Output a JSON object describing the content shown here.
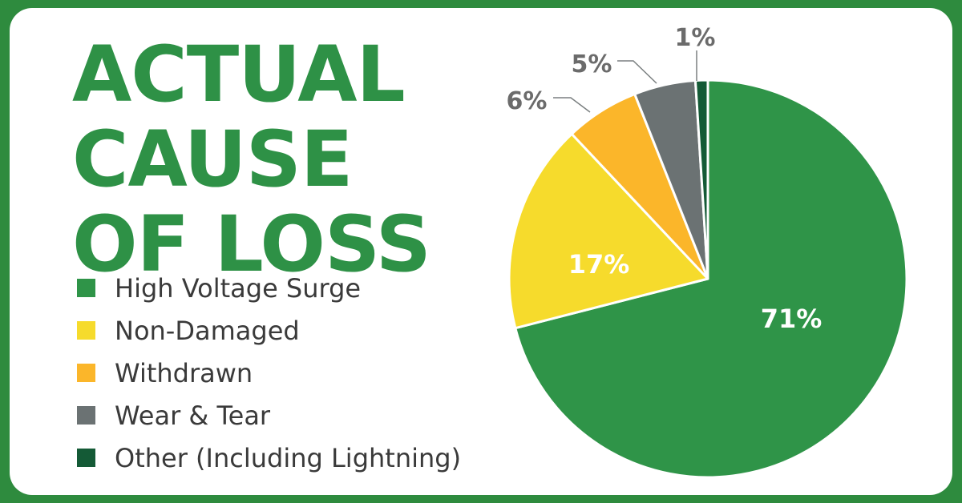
{
  "title_lines": [
    "ACTUAL",
    "CAUSE",
    "OF LOSS"
  ],
  "colors": {
    "border": "#2e8b3e",
    "title": "#2e9146",
    "leader": "#7a7f80"
  },
  "chart_data": {
    "type": "pie",
    "start_angle_deg": 0,
    "direction": "clockwise",
    "slices": [
      {
        "label": "High Voltage Surge",
        "value": 71,
        "value_label": "71%",
        "color": "#2f9448",
        "label_position": "inside"
      },
      {
        "label": "Non-Damaged",
        "value": 17,
        "value_label": "17%",
        "color": "#f6db2c",
        "label_position": "inside"
      },
      {
        "label": "Withdrawn",
        "value": 6,
        "value_label": "6%",
        "color": "#fbb62a",
        "label_position": "outside"
      },
      {
        "label": "Wear & Tear",
        "value": 5,
        "value_label": "5%",
        "color": "#6b7273",
        "label_position": "outside"
      },
      {
        "label": "Other (Including Lightning)",
        "value": 1,
        "value_label": "1%",
        "color": "#145a36",
        "label_position": "outside"
      }
    ]
  }
}
